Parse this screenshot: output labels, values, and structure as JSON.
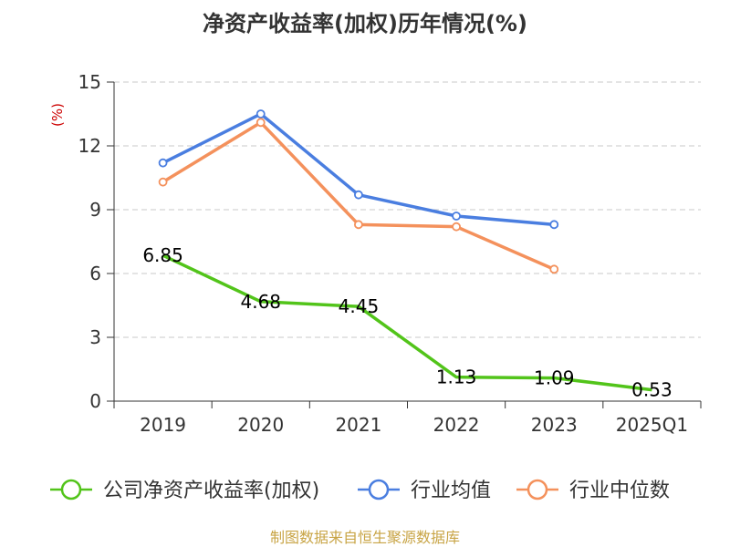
{
  "chart_data": {
    "type": "line",
    "title": "净资产收益率(加权)历年情况(%)",
    "ylabel": "(%)",
    "xlabel": "",
    "categories": [
      "2019",
      "2020",
      "2021",
      "2022",
      "2023",
      "2025Q1"
    ],
    "ylim": [
      0,
      15
    ],
    "yticks": [
      "0",
      "3",
      "6",
      "9",
      "12",
      "15"
    ],
    "grid": true,
    "legend_position": "bottom",
    "series": [
      {
        "name": "公司净资产收益率(加权)",
        "color": "#52c41a",
        "values": [
          6.85,
          4.68,
          4.45,
          1.13,
          1.09,
          0.53
        ],
        "labels": [
          "6.85",
          "4.68",
          "4.45",
          "1.13",
          "1.09",
          "0.53"
        ],
        "markers": false
      },
      {
        "name": "行业均值",
        "color": "#4a7ee0",
        "values": [
          11.2,
          13.5,
          9.7,
          8.7,
          8.3,
          null
        ],
        "markers": true
      },
      {
        "name": "行业中位数",
        "color": "#f4915c",
        "values": [
          10.3,
          13.1,
          8.3,
          8.2,
          6.2,
          null
        ],
        "markers": true
      }
    ],
    "source_note": "制图数据来自恒生聚源数据库",
    "ylabel_color": "#cc0000"
  }
}
